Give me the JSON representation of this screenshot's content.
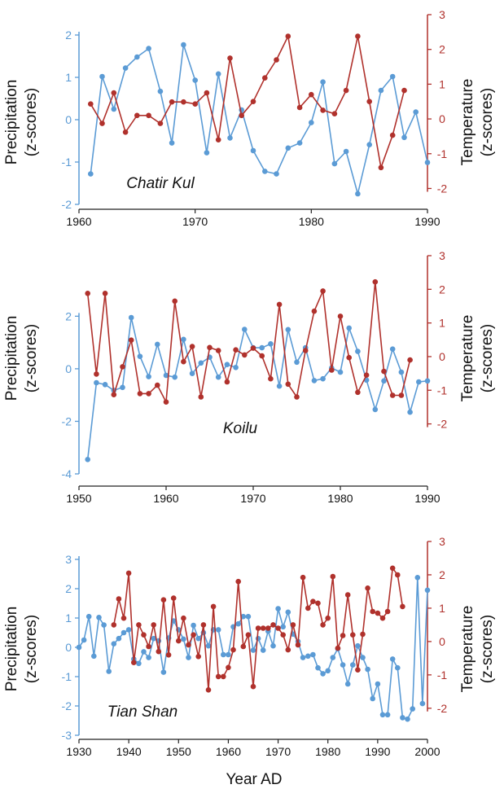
{
  "colors": {
    "precipitation": "#5b9bd5",
    "temperature": "#b0312c",
    "xaxis": "#222222"
  },
  "figure": {
    "xlabel": "Year AD"
  },
  "chart_data": [
    {
      "type": "line",
      "panel": "Chatir Kul",
      "xlim": [
        1960,
        1990
      ],
      "xticks": [
        1960,
        1970,
        1980,
        1990
      ],
      "left_axis": {
        "label_line1": "Precipitation",
        "label_line2": "(z-scores)",
        "ylim": [
          -2,
          2
        ],
        "ticks": [
          -2,
          -1,
          0,
          1,
          2
        ]
      },
      "right_axis": {
        "label_line1": "Temperature",
        "label_line2": "(z-scores)",
        "ylim": [
          -2.2,
          3
        ],
        "ticks": [
          -2,
          -1,
          0,
          1,
          2,
          3
        ]
      },
      "series": [
        {
          "axis": "left",
          "x": [
            1961,
            1962,
            1963,
            1964,
            1965,
            1966,
            1967,
            1968,
            1969,
            1970,
            1971,
            1972,
            1973,
            1974,
            1975,
            1976,
            1977,
            1978,
            1979,
            1980,
            1981,
            1982,
            1983,
            1984,
            1985,
            1986,
            1987,
            1988,
            1989,
            1990
          ],
          "y": [
            -1.28,
            1.02,
            0.25,
            1.22,
            1.48,
            1.68,
            0.67,
            -0.55,
            1.77,
            0.93,
            -0.78,
            1.08,
            -0.43,
            0.23,
            -0.73,
            -1.22,
            -1.28,
            -0.67,
            -0.55,
            -0.07,
            0.89,
            -1.04,
            -0.75,
            -1.75,
            -0.59,
            0.69,
            1.02,
            -0.42,
            0.18,
            -1.01
          ]
        },
        {
          "axis": "right",
          "x": [
            1961,
            1962,
            1963,
            1964,
            1965,
            1966,
            1967,
            1968,
            1969,
            1970,
            1971,
            1972,
            1973,
            1974,
            1975,
            1976,
            1977,
            1978,
            1979,
            1980,
            1981,
            1982,
            1983,
            1984,
            1985,
            1986,
            1987,
            1988
          ],
          "y": [
            0.43,
            -0.13,
            0.75,
            -0.38,
            0.1,
            0.1,
            -0.13,
            0.49,
            0.49,
            0.43,
            0.75,
            -0.6,
            1.75,
            0.1,
            0.5,
            1.18,
            1.7,
            2.38,
            0.33,
            0.7,
            0.25,
            0.15,
            0.82,
            2.38,
            0.5,
            -1.4,
            -0.47,
            0.82
          ]
        }
      ]
    },
    {
      "type": "line",
      "panel": "Koilu",
      "xlim": [
        1950,
        1990
      ],
      "xticks": [
        1950,
        1960,
        1970,
        1980,
        1990
      ],
      "left_axis": {
        "label_line1": "Precipitation",
        "label_line2": "(z-scores)",
        "ylim": [
          -4,
          2.6
        ],
        "ticks": [
          -4,
          -2,
          0,
          2
        ]
      },
      "right_axis": {
        "label_line1": "Temperature",
        "label_line2": "(z-scores)",
        "ylim": [
          -2.3,
          3
        ],
        "ticks": [
          -2,
          -1,
          0,
          1,
          2,
          3
        ]
      },
      "series": [
        {
          "axis": "left",
          "x": [
            1951,
            1952,
            1953,
            1954,
            1955,
            1956,
            1957,
            1958,
            1959,
            1960,
            1961,
            1962,
            1963,
            1964,
            1965,
            1966,
            1967,
            1968,
            1969,
            1970,
            1971,
            1972,
            1973,
            1974,
            1975,
            1976,
            1977,
            1978,
            1979,
            1980,
            1981,
            1982,
            1983,
            1984,
            1985,
            1986,
            1987,
            1988,
            1989,
            1990
          ],
          "y": [
            -3.45,
            -0.53,
            -0.6,
            -0.82,
            -0.71,
            1.95,
            0.47,
            -0.3,
            0.93,
            -0.25,
            -0.32,
            1.12,
            -0.18,
            0.22,
            0.44,
            -0.32,
            0.16,
            0.05,
            1.5,
            0.8,
            0.8,
            0.95,
            -0.66,
            1.49,
            0.25,
            0.8,
            -0.45,
            -0.38,
            0.03,
            -0.13,
            1.55,
            0.66,
            -0.43,
            -1.55,
            -0.46,
            0.75,
            -0.13,
            -1.65,
            -0.5,
            -0.46
          ]
        },
        {
          "axis": "right",
          "x": [
            1951,
            1952,
            1953,
            1954,
            1955,
            1956,
            1957,
            1958,
            1959,
            1960,
            1961,
            1962,
            1963,
            1964,
            1965,
            1966,
            1967,
            1968,
            1969,
            1970,
            1971,
            1972,
            1973,
            1974,
            1975,
            1976,
            1977,
            1978,
            1979,
            1980,
            1981,
            1982,
            1983,
            1984,
            1985,
            1986,
            1987,
            1988
          ],
          "y": [
            1.88,
            -0.52,
            1.88,
            -1.13,
            -0.3,
            0.49,
            -1.1,
            -1.1,
            -0.85,
            -1.35,
            1.65,
            -0.15,
            0.3,
            -1.2,
            0.27,
            0.18,
            -0.75,
            0.2,
            0.05,
            0.25,
            0.02,
            -0.66,
            1.55,
            -0.82,
            -1.2,
            0.18,
            1.35,
            1.95,
            -0.4,
            1.2,
            -0.03,
            -1.06,
            -0.55,
            2.22,
            -0.44,
            -1.15,
            -1.15,
            -0.1
          ]
        }
      ]
    },
    {
      "type": "line",
      "panel": "Tian Shan",
      "xlim": [
        1930,
        2000
      ],
      "xticks": [
        1930,
        1940,
        1950,
        1960,
        1970,
        1980,
        1990,
        2000
      ],
      "left_axis": {
        "label_line1": "Precipitation",
        "label_line2": "(z-scores)",
        "ylim": [
          -3,
          3
        ],
        "ticks": [
          -3,
          -2,
          -1,
          0,
          1,
          2,
          3
        ]
      },
      "right_axis": {
        "label_line1": "Temperature",
        "label_line2": "(z-scores)",
        "ylim": [
          -2.2,
          3
        ],
        "ticks": [
          -2,
          -1,
          0,
          1,
          2,
          3
        ]
      },
      "series": [
        {
          "axis": "left",
          "x": [
            1930,
            1931,
            1932,
            1933,
            1934,
            1935,
            1936,
            1937,
            1938,
            1939,
            1940,
            1941,
            1942,
            1943,
            1944,
            1945,
            1946,
            1947,
            1948,
            1949,
            1950,
            1951,
            1952,
            1953,
            1954,
            1955,
            1956,
            1957,
            1958,
            1959,
            1960,
            1961,
            1962,
            1963,
            1964,
            1965,
            1966,
            1967,
            1968,
            1969,
            1970,
            1971,
            1972,
            1973,
            1974,
            1975,
            1976,
            1977,
            1978,
            1979,
            1980,
            1981,
            1982,
            1983,
            1984,
            1985,
            1986,
            1987,
            1988,
            1989,
            1990,
            1991,
            1992,
            1993,
            1994,
            1995,
            1996,
            1997,
            1998,
            1999,
            2000
          ],
          "y": [
            0.0,
            0.25,
            1.05,
            -0.3,
            1.02,
            0.76,
            -0.82,
            0.12,
            0.3,
            0.5,
            0.6,
            -0.4,
            -0.55,
            -0.15,
            -0.35,
            0.3,
            0.22,
            -0.85,
            0.32,
            0.9,
            0.6,
            0.28,
            -0.35,
            0.75,
            0.3,
            0.5,
            0.05,
            0.6,
            0.6,
            -0.25,
            -0.25,
            0.7,
            0.8,
            1.05,
            1.05,
            -0.1,
            0.3,
            -0.1,
            0.55,
            0.05,
            1.32,
            0.7,
            1.2,
            0.45,
            0.2,
            -0.35,
            -0.3,
            -0.25,
            -0.7,
            -0.9,
            -0.8,
            -0.35,
            -0.05,
            -0.6,
            -1.25,
            -0.6,
            0.05,
            -0.35,
            -0.75,
            -1.75,
            -1.25,
            -2.3,
            -2.3,
            -0.4,
            -0.7,
            -2.4,
            -2.45,
            -2.1,
            2.38,
            -1.92,
            1.95
          ]
        },
        {
          "axis": "right",
          "x": [
            1937,
            1938,
            1939,
            1940,
            1941,
            1942,
            1943,
            1944,
            1945,
            1946,
            1947,
            1948,
            1949,
            1950,
            1951,
            1952,
            1953,
            1954,
            1955,
            1956,
            1957,
            1958,
            1959,
            1960,
            1961,
            1962,
            1963,
            1964,
            1965,
            1966,
            1967,
            1968,
            1969,
            1970,
            1971,
            1972,
            1973,
            1974,
            1975,
            1976,
            1977,
            1978,
            1979,
            1980,
            1981,
            1982,
            1983,
            1984,
            1985,
            1986,
            1987,
            1988,
            1989,
            1990,
            1991,
            1992,
            1993,
            1994,
            1995
          ],
          "y": [
            0.5,
            1.28,
            0.7,
            2.05,
            -0.63,
            0.5,
            0.2,
            -0.15,
            0.5,
            -0.3,
            1.25,
            -0.4,
            1.3,
            0.02,
            0.7,
            -0.1,
            0.2,
            -0.45,
            0.5,
            -1.45,
            1.05,
            -1.05,
            -1.05,
            -0.78,
            -0.25,
            1.8,
            -0.15,
            0.2,
            -1.35,
            0.4,
            0.4,
            0.4,
            0.5,
            0.4,
            0.2,
            -0.25,
            0.5,
            -0.1,
            1.92,
            1.0,
            1.2,
            1.15,
            0.5,
            0.7,
            1.95,
            -0.2,
            0.18,
            1.4,
            0.2,
            -0.85,
            0.22,
            1.6,
            0.9,
            0.85,
            0.7,
            0.9,
            2.2,
            2.0,
            1.05
          ]
        }
      ]
    }
  ]
}
